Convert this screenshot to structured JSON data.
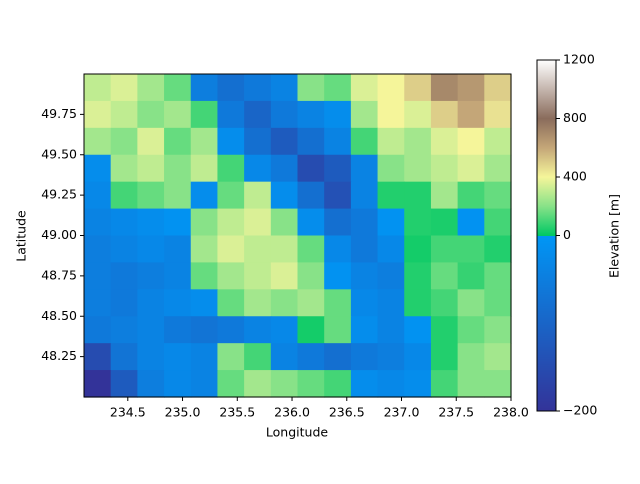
{
  "chart_data": {
    "type": "heatmap",
    "x_label": "Longitude",
    "y_label": "Latitude",
    "colorbar_label": "Elevation [m]",
    "xlim": [
      234.1,
      238.0
    ],
    "ylim": [
      48.0,
      50.0
    ],
    "xticks": [
      {
        "value": 234.5,
        "label": "234.5"
      },
      {
        "value": 235.0,
        "label": "235.0"
      },
      {
        "value": 235.5,
        "label": "235.5"
      },
      {
        "value": 236.0,
        "label": "236.0"
      },
      {
        "value": 236.5,
        "label": "236.5"
      },
      {
        "value": 237.0,
        "label": "237.0"
      },
      {
        "value": 237.5,
        "label": "237.5"
      },
      {
        "value": 238.0,
        "label": "238.0"
      }
    ],
    "yticks": [
      48.25,
      {
        "value": 48.5,
        "label": "48.50"
      },
      48.75,
      {
        "value": 49.0,
        "label": "49.00"
      },
      49.25,
      {
        "value": 49.5,
        "label": "49.50"
      },
      49.75
    ],
    "clim": [
      -200,
      1200
    ],
    "vcenter": 0,
    "cticks": [
      {
        "value": -200,
        "label": "−200"
      },
      0,
      400,
      800,
      1200
    ],
    "colormap": [
      {
        "value": -200,
        "color": "#333399"
      },
      {
        "value": -1,
        "color": "#0096f5"
      },
      {
        "value": 0,
        "color": "#00c864"
      },
      {
        "value": 200,
        "color": "#88e288"
      },
      {
        "value": 400,
        "color": "#f5f59a"
      },
      {
        "value": 600,
        "color": "#c4a678"
      },
      {
        "value": 800,
        "color": "#8a6c5c"
      },
      {
        "value": 1200,
        "color": "#ffffff"
      }
    ],
    "z": [
      [
        300,
        350,
        250,
        150,
        -50,
        -80,
        -60,
        -40,
        200,
        150,
        350,
        400,
        500,
        700,
        650,
        500
      ],
      [
        350,
        300,
        200,
        250,
        100,
        -60,
        -100,
        -60,
        -40,
        -20,
        250,
        400,
        350,
        500,
        600,
        450
      ],
      [
        250,
        200,
        350,
        150,
        250,
        -20,
        -80,
        -120,
        -80,
        -40,
        100,
        300,
        250,
        350,
        400,
        300
      ],
      [
        -20,
        250,
        300,
        200,
        300,
        100,
        -30,
        -60,
        -150,
        -120,
        -40,
        200,
        250,
        300,
        350,
        250
      ],
      [
        -30,
        100,
        150,
        200,
        -20,
        150,
        300,
        -20,
        -80,
        -140,
        -40,
        50,
        50,
        250,
        100,
        150
      ],
      [
        -40,
        -30,
        -20,
        -10,
        200,
        300,
        350,
        200,
        -20,
        -80,
        -60,
        -10,
        50,
        40,
        -10,
        100
      ],
      [
        -50,
        -40,
        -30,
        -40,
        250,
        350,
        300,
        300,
        150,
        -30,
        -60,
        -30,
        30,
        100,
        100,
        50
      ],
      [
        -50,
        -60,
        -50,
        -40,
        150,
        250,
        300,
        350,
        200,
        -10,
        -40,
        -50,
        50,
        150,
        80,
        150
      ],
      [
        -50,
        -60,
        -40,
        -30,
        -20,
        150,
        250,
        200,
        250,
        150,
        -30,
        -40,
        50,
        100,
        200,
        150
      ],
      [
        -60,
        -50,
        -40,
        -60,
        -70,
        -60,
        -40,
        -30,
        30,
        150,
        -20,
        -40,
        -10,
        50,
        150,
        200
      ],
      [
        -150,
        -70,
        -40,
        -30,
        -40,
        200,
        100,
        -40,
        -60,
        -80,
        -60,
        -50,
        -30,
        50,
        200,
        250
      ],
      [
        -200,
        -120,
        -50,
        -30,
        -40,
        150,
        250,
        200,
        150,
        100,
        -20,
        -30,
        -20,
        100,
        200,
        200
      ]
    ]
  }
}
